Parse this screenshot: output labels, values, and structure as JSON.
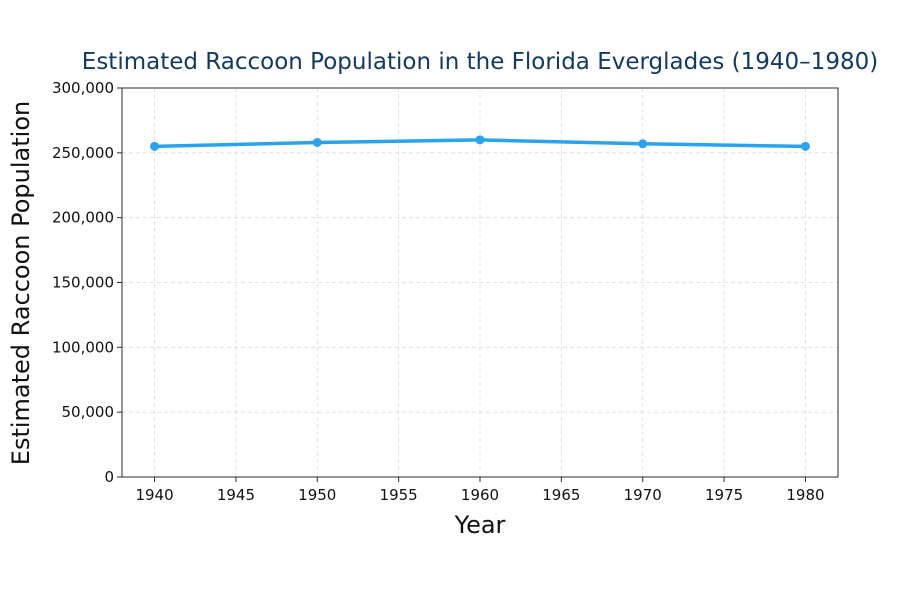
{
  "chart_data": {
    "type": "line",
    "title": "Estimated Raccoon Population in the Florida Everglades (1940–1980)",
    "xlabel": "Year",
    "ylabel": "Estimated Raccoon Population",
    "x": [
      1940,
      1950,
      1960,
      1970,
      1980
    ],
    "series": [
      {
        "name": "Estimated Raccoon Population",
        "values": [
          255000,
          258000,
          260000,
          257000,
          255000
        ],
        "color": "#2ba3ec"
      }
    ],
    "xlim": [
      1938,
      1982
    ],
    "ylim": [
      0,
      300000
    ],
    "x_ticks": [
      1940,
      1945,
      1950,
      1955,
      1960,
      1965,
      1970,
      1975,
      1980
    ],
    "y_ticks": [
      0,
      50000,
      100000,
      150000,
      200000,
      250000,
      300000
    ],
    "y_tick_labels": [
      "0",
      "50,000",
      "100,000",
      "150,000",
      "200,000",
      "250,000",
      "300,000"
    ],
    "grid": true,
    "colors": {
      "title": "#123a63",
      "line": "#2ba3ec",
      "grid": "#d9d9e6"
    }
  }
}
